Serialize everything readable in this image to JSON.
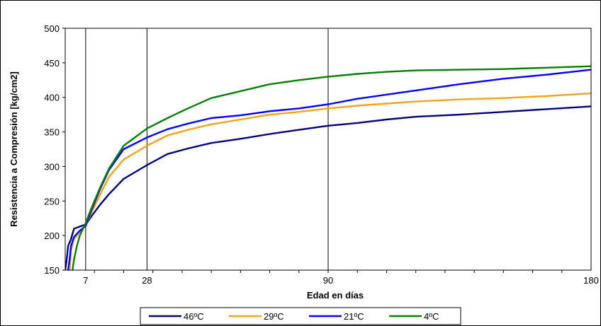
{
  "chart_data": {
    "type": "line",
    "title": "",
    "xlabel": "Edad en días",
    "ylabel": "Resistencia a Compresión [kg/cm2]",
    "xlim": [
      0,
      180
    ],
    "ylim": [
      150,
      500
    ],
    "yticks": [
      150,
      200,
      250,
      300,
      350,
      400,
      450,
      500
    ],
    "xticks": [
      7,
      28,
      90,
      180
    ],
    "grid": "vertical lines at labeled x ticks",
    "legend_position": "bottom",
    "series": [
      {
        "name": "46ºC",
        "color": "#000080",
        "x": [
          0,
          0.5,
          1,
          2,
          3,
          5,
          7,
          9,
          12,
          15,
          20,
          28,
          35,
          42,
          50,
          60,
          70,
          80,
          90,
          100,
          110,
          120,
          135,
          150,
          165,
          180
        ],
        "values": [
          150,
          165,
          185,
          195,
          210,
          213,
          216,
          228,
          245,
          260,
          282,
          302,
          318,
          326,
          334,
          340,
          347,
          353,
          359,
          363,
          368,
          372,
          375,
          379,
          383,
          387
        ]
      },
      {
        "name": "29ºC",
        "color": "#F7A11A",
        "x": [
          1.5,
          2,
          3,
          5,
          7,
          9,
          12,
          15,
          20,
          28,
          35,
          42,
          50,
          60,
          70,
          80,
          90,
          100,
          110,
          120,
          135,
          150,
          165,
          180
        ],
        "values": [
          150,
          178,
          195,
          205,
          215,
          233,
          260,
          285,
          310,
          330,
          345,
          353,
          361,
          368,
          375,
          379,
          384,
          388,
          391,
          394,
          397,
          399,
          402,
          406
        ]
      },
      {
        "name": "21ºC",
        "color": "#0000FF",
        "x": [
          1,
          1.5,
          2,
          3,
          5,
          7,
          9,
          12,
          15,
          20,
          28,
          35,
          42,
          50,
          60,
          70,
          80,
          90,
          100,
          110,
          120,
          135,
          150,
          165,
          180
        ],
        "values": [
          150,
          165,
          185,
          198,
          207,
          214,
          237,
          268,
          295,
          325,
          342,
          354,
          362,
          370,
          374,
          380,
          384,
          390,
          398,
          404,
          410,
          419,
          427,
          433,
          440
        ]
      },
      {
        "name": "4ºC",
        "color": "#008000",
        "x": [
          2.5,
          3,
          4,
          5,
          7,
          9,
          12,
          15,
          20,
          28,
          35,
          42,
          50,
          60,
          70,
          80,
          90,
          100,
          110,
          120,
          135,
          150,
          165,
          180
        ],
        "values": [
          150,
          165,
          185,
          200,
          218,
          240,
          270,
          297,
          330,
          355,
          370,
          384,
          399,
          409,
          419,
          425,
          430,
          434,
          437,
          439,
          440,
          441,
          443,
          445
        ]
      }
    ]
  }
}
